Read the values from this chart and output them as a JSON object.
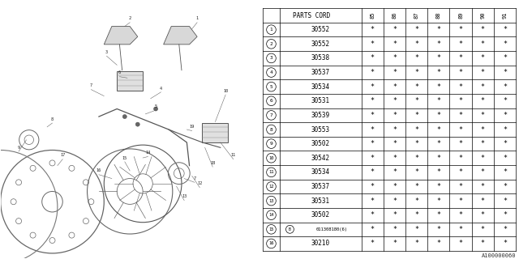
{
  "watermark": "A100000060",
  "years": [
    "85",
    "86",
    "87",
    "88",
    "89",
    "90",
    "91"
  ],
  "rows": [
    {
      "num": 1,
      "circle_b": false,
      "part": "30552",
      "marks": [
        "*",
        "*",
        "*",
        "*",
        "*",
        "*",
        "*"
      ]
    },
    {
      "num": 2,
      "circle_b": false,
      "part": "30552",
      "marks": [
        "*",
        "*",
        "*",
        "*",
        "*",
        "*",
        "*"
      ]
    },
    {
      "num": 3,
      "circle_b": false,
      "part": "30538",
      "marks": [
        "*",
        "*",
        "*",
        "*",
        "*",
        "*",
        "*"
      ]
    },
    {
      "num": 4,
      "circle_b": false,
      "part": "30537",
      "marks": [
        "*",
        "*",
        "*",
        "*",
        "*",
        "*",
        "*"
      ]
    },
    {
      "num": 5,
      "circle_b": false,
      "part": "30534",
      "marks": [
        "*",
        "*",
        "*",
        "*",
        "*",
        "*",
        "*"
      ]
    },
    {
      "num": 6,
      "circle_b": false,
      "part": "30531",
      "marks": [
        "*",
        "*",
        "*",
        "*",
        "*",
        "*",
        "*"
      ]
    },
    {
      "num": 7,
      "circle_b": false,
      "part": "30539",
      "marks": [
        "*",
        "*",
        "*",
        "*",
        "*",
        "*",
        "*"
      ]
    },
    {
      "num": 8,
      "circle_b": false,
      "part": "30553",
      "marks": [
        "*",
        "*",
        "*",
        "*",
        "*",
        "*",
        "*"
      ]
    },
    {
      "num": 9,
      "circle_b": false,
      "part": "30502",
      "marks": [
        "*",
        "*",
        "*",
        "*",
        "*",
        "*",
        "*"
      ]
    },
    {
      "num": 10,
      "circle_b": false,
      "part": "30542",
      "marks": [
        "*",
        "*",
        "*",
        "*",
        "*",
        "*",
        "*"
      ]
    },
    {
      "num": 11,
      "circle_b": false,
      "part": "30534",
      "marks": [
        "*",
        "*",
        "*",
        "*",
        "*",
        "*",
        "*"
      ]
    },
    {
      "num": 12,
      "circle_b": false,
      "part": "30537",
      "marks": [
        "*",
        "*",
        "*",
        "*",
        "*",
        "*",
        "*"
      ]
    },
    {
      "num": 13,
      "circle_b": false,
      "part": "30531",
      "marks": [
        "*",
        "*",
        "*",
        "*",
        "*",
        "*",
        "*"
      ]
    },
    {
      "num": 14,
      "circle_b": false,
      "part": "30502",
      "marks": [
        "*",
        "*",
        "*",
        "*",
        "*",
        "*",
        "*"
      ]
    },
    {
      "num": 15,
      "circle_b": true,
      "part": "011308180(6)",
      "marks": [
        "*",
        "*",
        "*",
        "*",
        "*",
        "*",
        "*"
      ]
    },
    {
      "num": 16,
      "circle_b": false,
      "part": "30210",
      "marks": [
        "*",
        "*",
        "*",
        "*",
        "*",
        "*",
        "*"
      ]
    }
  ],
  "bg_color": "#ffffff"
}
